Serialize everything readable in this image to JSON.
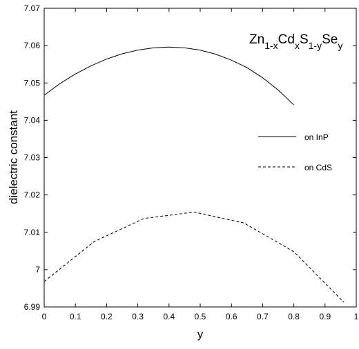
{
  "chart_data": {
    "type": "line",
    "title": "",
    "annotation": {
      "base1": "Zn",
      "sub1": "1-x",
      "base2": "Cd",
      "sub2": "x",
      "base3": "S",
      "sub3": "1-y",
      "base4": "Se",
      "sub4": "y"
    },
    "xlabel": "y",
    "ylabel": "dielectric constant",
    "xlim": [
      0,
      1
    ],
    "ylim": [
      6.99,
      7.07
    ],
    "x_ticks": [
      "0",
      "0.1",
      "0.2",
      "0.3",
      "0.4",
      "0.5",
      "0.6",
      "0.7",
      "0.8",
      "0.9",
      "1"
    ],
    "x_tick_values": [
      0,
      0.1,
      0.2,
      0.3,
      0.4,
      0.5,
      0.6,
      0.7,
      0.8,
      0.9,
      1
    ],
    "y_ticks": [
      "6.99",
      "7",
      "7.01",
      "7.02",
      "7.03",
      "7.04",
      "7.05",
      "7.06",
      "7.07"
    ],
    "y_tick_values": [
      6.99,
      7.0,
      7.01,
      7.02,
      7.03,
      7.04,
      7.05,
      7.06,
      7.07
    ],
    "grid": false,
    "legend_position": "right",
    "series": [
      {
        "name": "on InP",
        "style": "solid",
        "color": "#000000",
        "x": [
          0.0,
          0.05,
          0.1,
          0.15,
          0.2,
          0.25,
          0.3,
          0.35,
          0.4,
          0.45,
          0.5,
          0.55,
          0.6,
          0.65,
          0.7,
          0.75,
          0.8
        ],
        "y": [
          7.0467,
          7.0498,
          7.0524,
          7.0546,
          7.0564,
          7.0578,
          7.0588,
          7.0594,
          7.0596,
          7.0594,
          7.0588,
          7.0577,
          7.0561,
          7.0541,
          7.0514,
          7.0481,
          7.0441
        ]
      },
      {
        "name": "on CdS",
        "style": "dashed",
        "color": "#000000",
        "x": [
          0.0,
          0.16,
          0.32,
          0.48,
          0.64,
          0.8,
          0.96
        ],
        "y": [
          6.9968,
          7.0075,
          7.0137,
          7.0154,
          7.0125,
          7.0048,
          6.9913
        ]
      }
    ]
  }
}
